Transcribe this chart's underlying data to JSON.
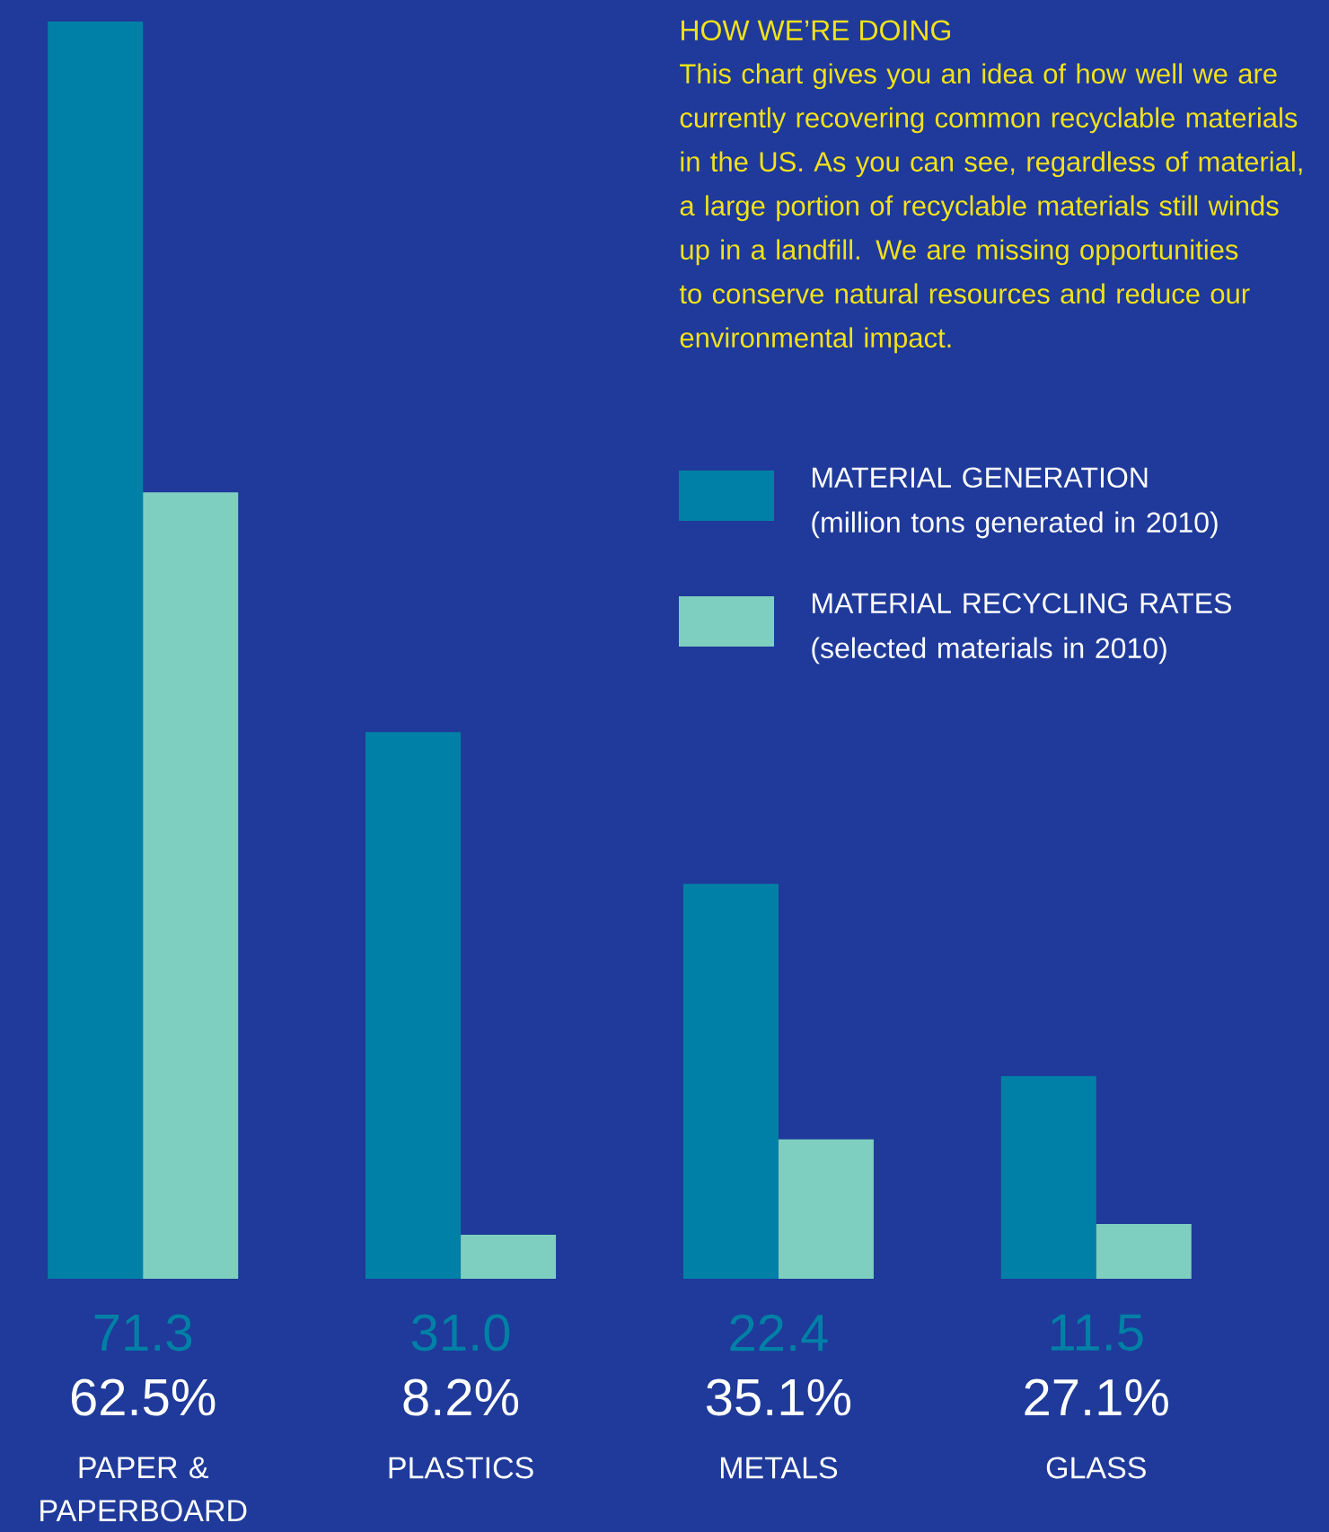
{
  "chart_data": {
    "type": "bar",
    "title": "HOW WE’RE DOING",
    "subtitle": "This chart gives you an idea of how well we are currently recovering common recyclable materials in the US. As you can see, regardless of material, a large portion of recyclable materials still winds up in a landfill. We are missing opportunities to conserve natural resources and reduce our environmental impact.",
    "categories": [
      "PAPER & PAPERBOARD",
      "PLASTICS",
      "METALS",
      "GLASS"
    ],
    "series": [
      {
        "name": "MATERIAL GENERATION (million tons generated in 2010)",
        "color": "#0080a6",
        "values": [
          71.3,
          31.0,
          22.4,
          11.5
        ],
        "value_labels": [
          "71.3",
          "31.0",
          "22.4",
          "11.5"
        ]
      },
      {
        "name": "MATERIAL RECYCLING RATES (selected materials in 2010)",
        "color": "#7ecfc0",
        "values": [
          44.6,
          2.5,
          7.9,
          3.1
        ]
      }
    ],
    "annotations": [
      "62.5%",
      "8.2%",
      "35.1%",
      "27.1%"
    ],
    "legend": "top right"
  }
}
